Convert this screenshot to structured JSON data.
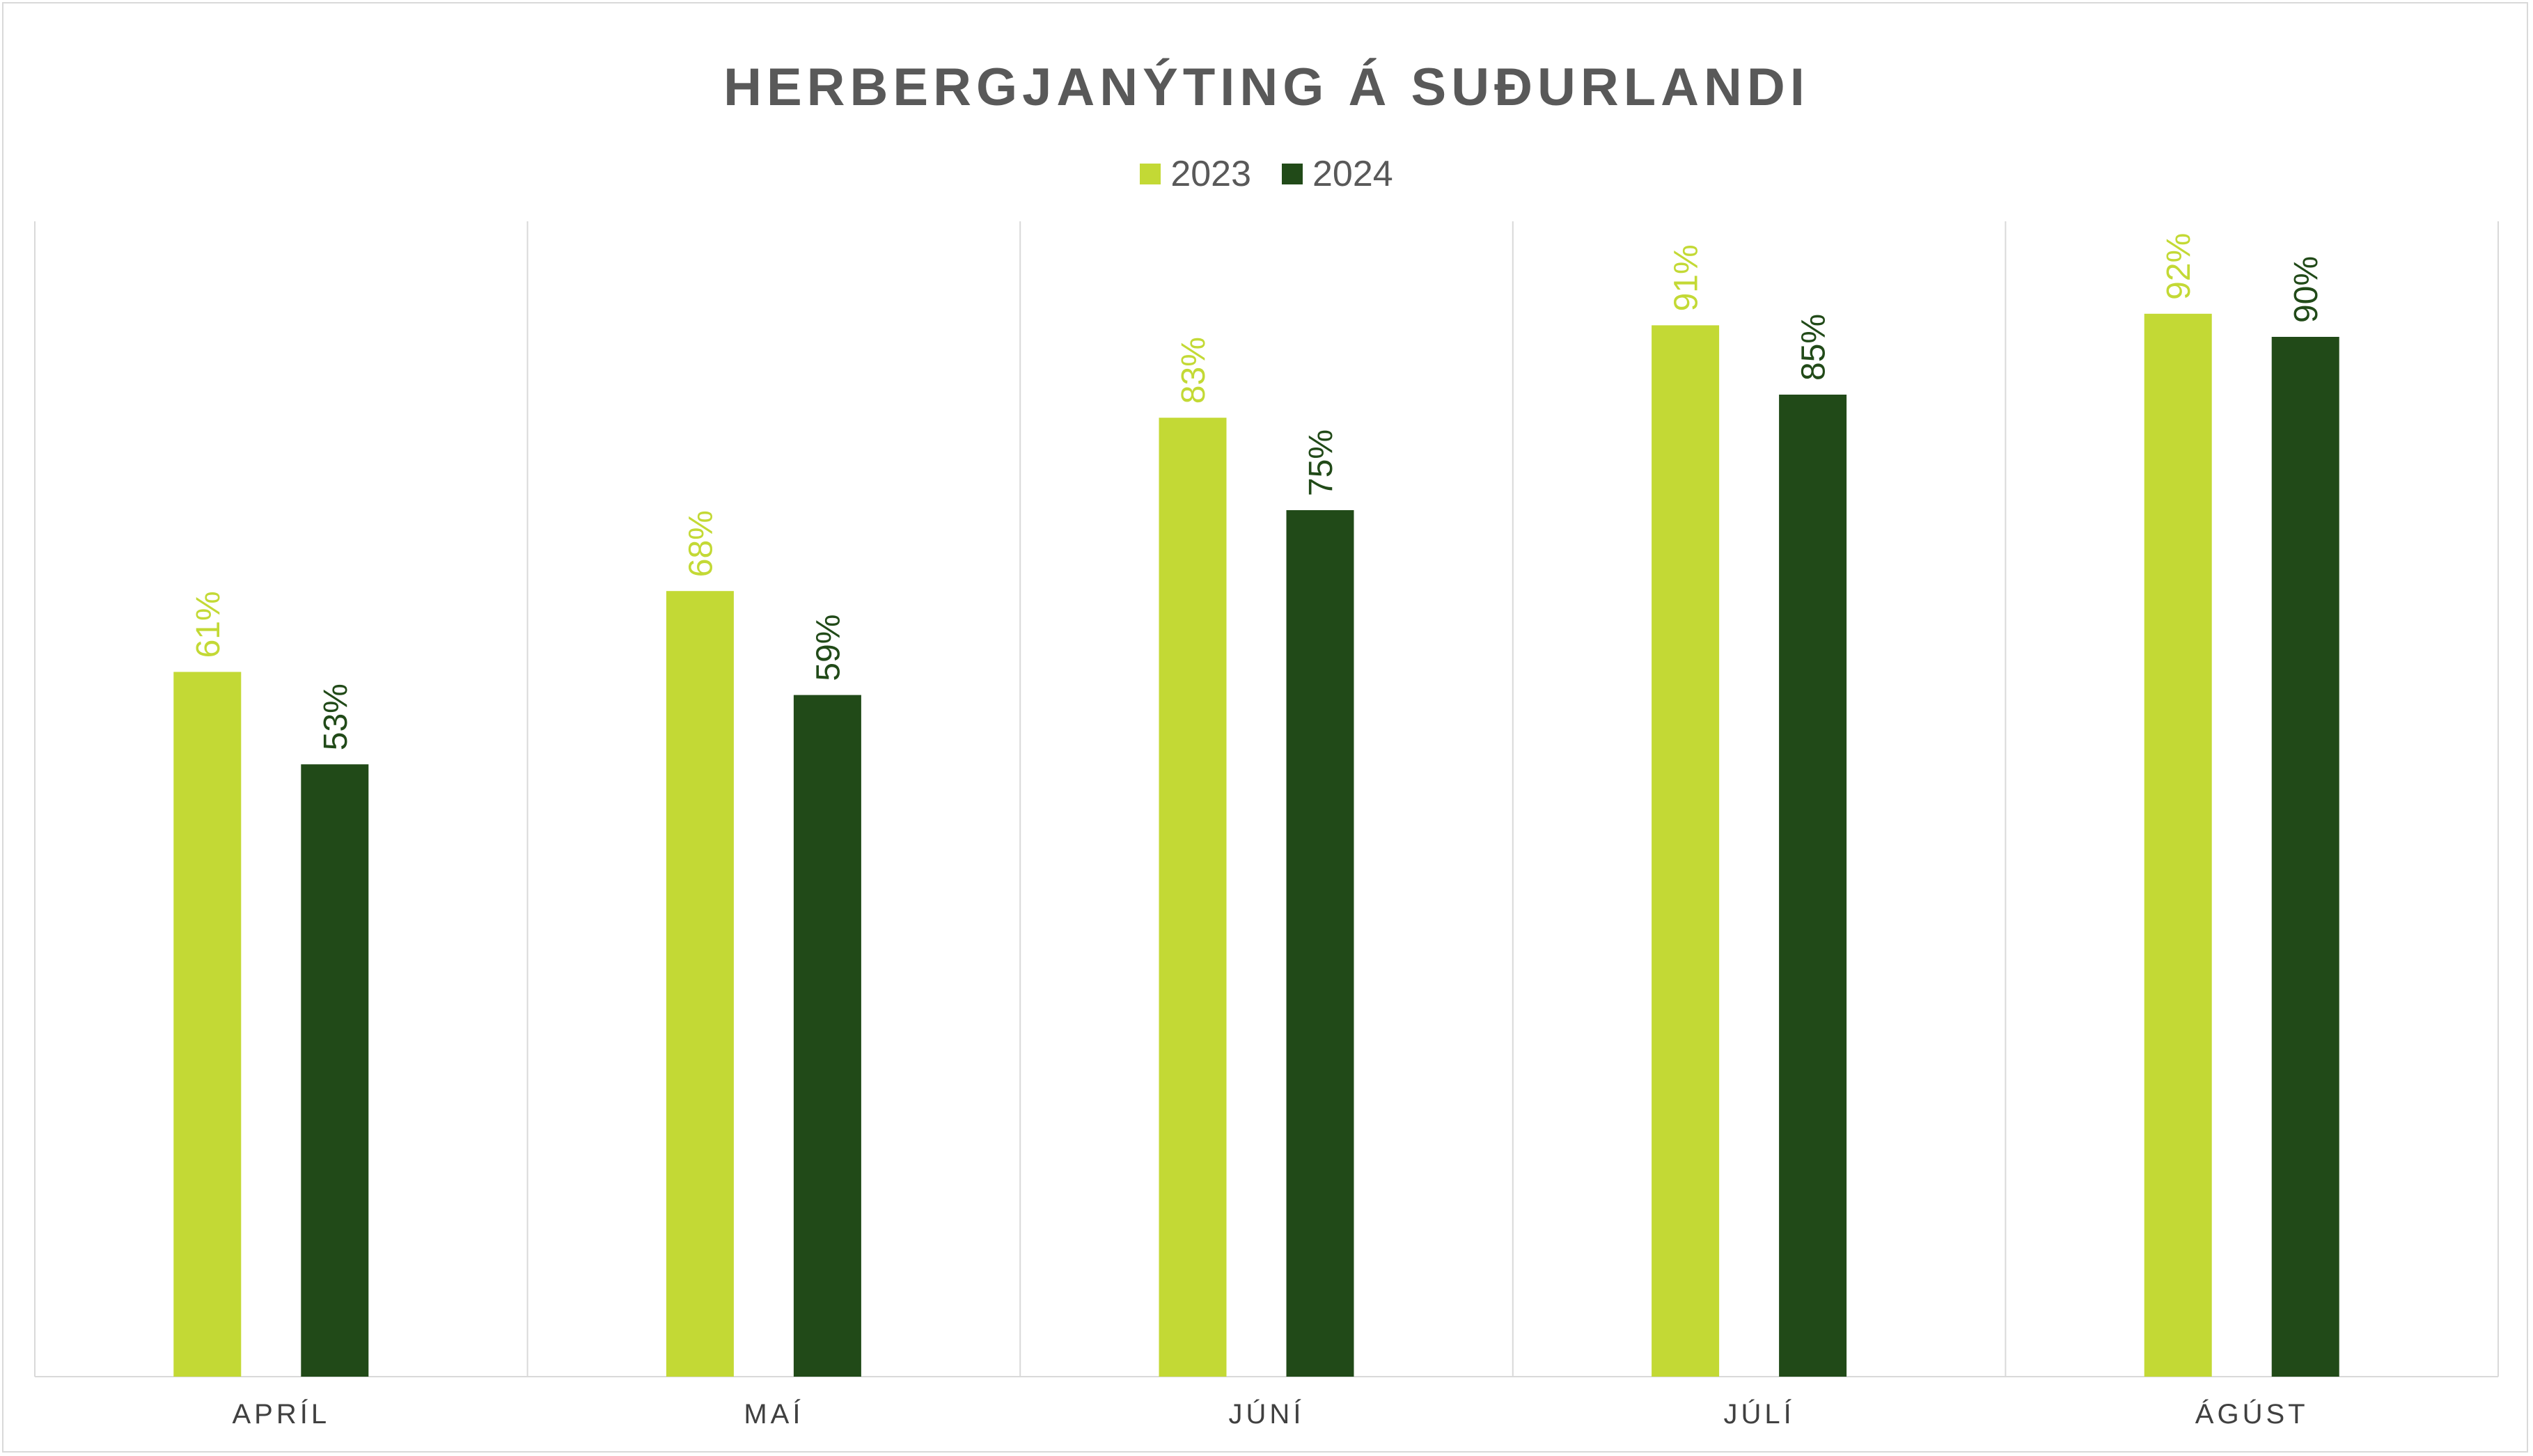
{
  "chart_data": {
    "type": "bar",
    "title": "HERBERGJANÝTING Á SUÐURLANDI",
    "categories": [
      "APRÍL",
      "MAÍ",
      "JÚNÍ",
      "JÚLÍ",
      "ÁGÚST"
    ],
    "series": [
      {
        "name": "2023",
        "color": "#c3d935",
        "values": [
          61,
          68,
          83,
          91,
          92
        ],
        "labels": [
          "61%",
          "68%",
          "83%",
          "91%",
          "92%"
        ]
      },
      {
        "name": "2024",
        "color": "#214a18",
        "values": [
          53,
          59,
          75,
          85,
          90
        ],
        "labels": [
          "53%",
          "59%",
          "75%",
          "85%",
          "90%"
        ]
      }
    ],
    "ylim": [
      0,
      100
    ],
    "grid": "vertical category separators",
    "legend": "top-center",
    "xlabel": "",
    "ylabel": ""
  }
}
